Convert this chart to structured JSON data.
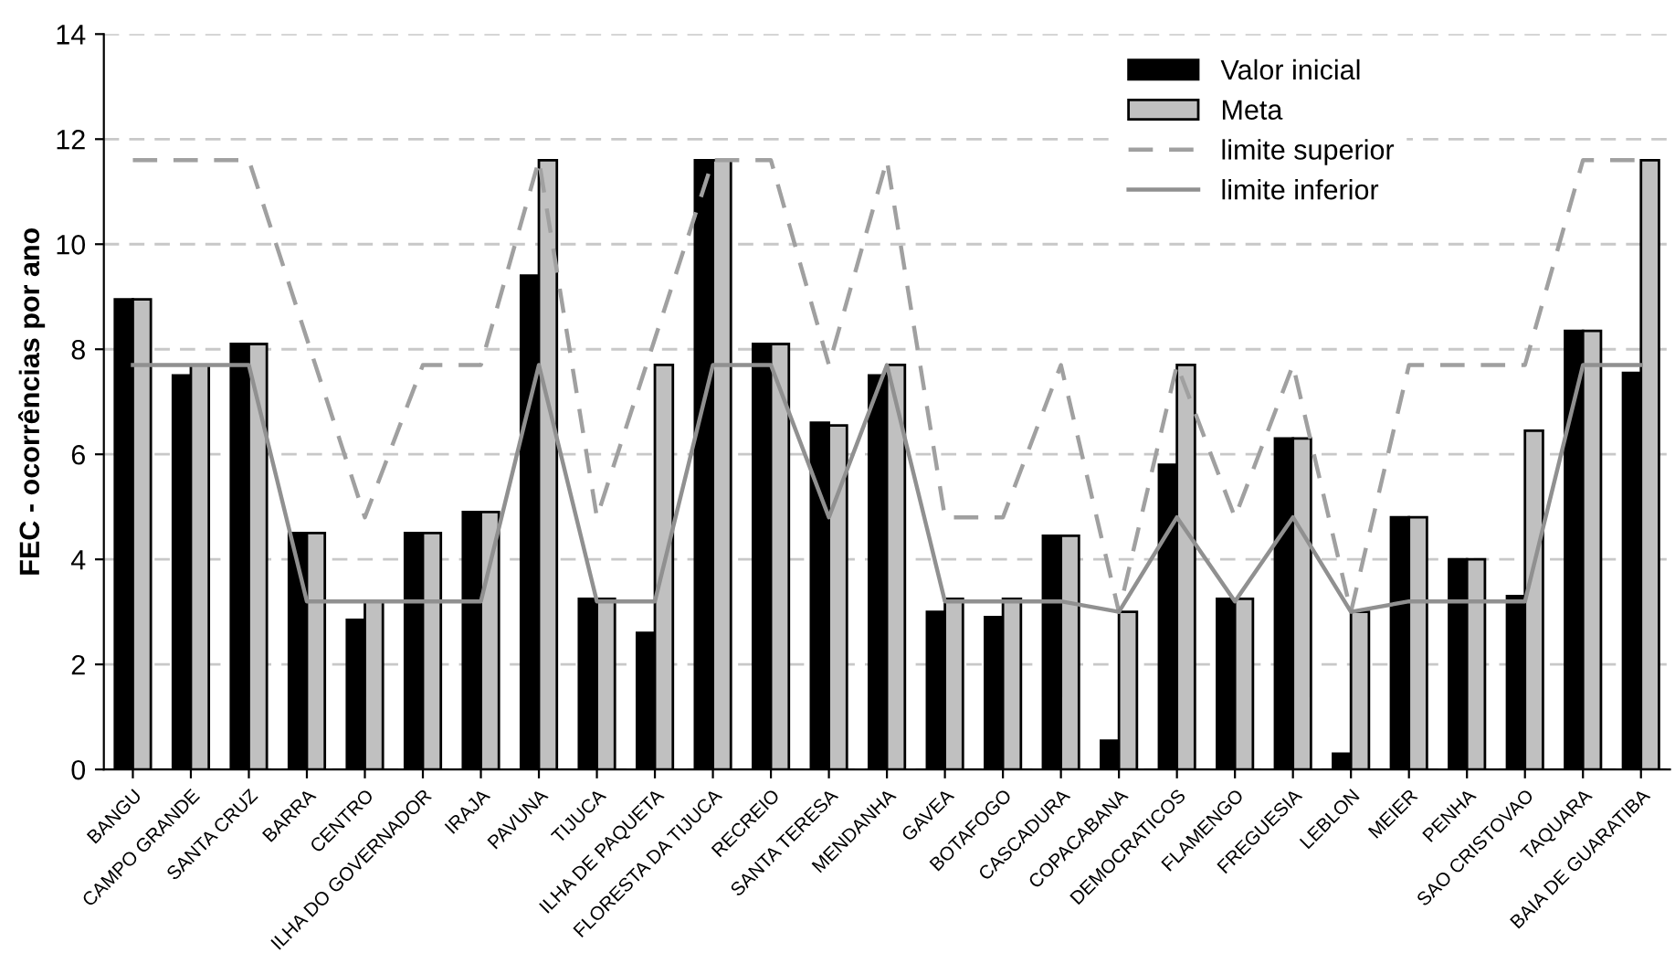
{
  "chart_data": {
    "type": "bar",
    "ylabel": "FEC - ocorrências por ano",
    "categories": [
      "BANGU",
      "CAMPO GRANDE",
      "SANTA CRUZ",
      "BARRA",
      "CENTRO",
      "ILHA DO GOVERNADOR",
      "IRAJA",
      "PAVUNA",
      "TIJUCA",
      "ILHA DE PAQUETA",
      "FLORESTA DA TIJUCA",
      "RECREIO",
      "SANTA TERESA",
      "MENDANHA",
      "GAVEA",
      "BOTAFOGO",
      "CASCADURA",
      "COPACABANA",
      "DEMOCRATICOS",
      "FLAMENGO",
      "FREGUESIA",
      "LEBLON",
      "MEIER",
      "PENHA",
      "SAO CRISTOVAO",
      "TAQUARA",
      "BAIA DE GUARATIBA"
    ],
    "series": [
      {
        "name": "Valor inicial",
        "color": "#000000",
        "values": [
          8.95,
          7.5,
          8.1,
          4.5,
          2.85,
          4.5,
          4.9,
          9.4,
          3.25,
          2.6,
          11.6,
          8.1,
          6.6,
          7.5,
          3.0,
          2.9,
          4.45,
          0.55,
          5.8,
          3.25,
          6.3,
          0.3,
          4.8,
          4.0,
          3.3,
          8.35,
          7.55
        ]
      },
      {
        "name": "Meta",
        "color": "#c0c0c0",
        "values": [
          8.95,
          7.7,
          8.1,
          4.5,
          3.2,
          4.5,
          4.9,
          11.6,
          3.25,
          7.7,
          11.6,
          8.1,
          6.55,
          7.7,
          3.25,
          3.25,
          4.45,
          3.0,
          7.7,
          3.25,
          6.3,
          3.0,
          4.8,
          4.0,
          6.45,
          8.35,
          11.6
        ]
      },
      {
        "name": "limite superior",
        "type": "line",
        "line_style": "dashed",
        "color": "#a0a0a0",
        "values": [
          11.6,
          11.6,
          11.6,
          8.2,
          4.8,
          7.7,
          7.7,
          11.6,
          4.8,
          8.2,
          11.6,
          11.6,
          7.7,
          11.6,
          4.8,
          4.8,
          7.7,
          3.0,
          7.7,
          4.8,
          7.7,
          3.0,
          7.7,
          7.7,
          7.7,
          11.6,
          11.6
        ]
      },
      {
        "name": "limite inferior",
        "type": "line",
        "line_style": "solid",
        "color": "#909090",
        "values": [
          7.7,
          7.7,
          7.7,
          3.2,
          3.2,
          3.2,
          3.2,
          7.7,
          3.2,
          3.2,
          7.7,
          7.7,
          4.8,
          7.7,
          3.2,
          3.2,
          3.2,
          3.0,
          4.8,
          3.2,
          4.8,
          3.0,
          3.2,
          3.2,
          3.2,
          7.7,
          7.7
        ]
      }
    ],
    "ylim": [
      0,
      14
    ],
    "yticks": [
      0,
      2,
      4,
      6,
      8,
      10,
      12,
      14
    ],
    "grid": "y",
    "legend": "top right",
    "marker": "none"
  }
}
